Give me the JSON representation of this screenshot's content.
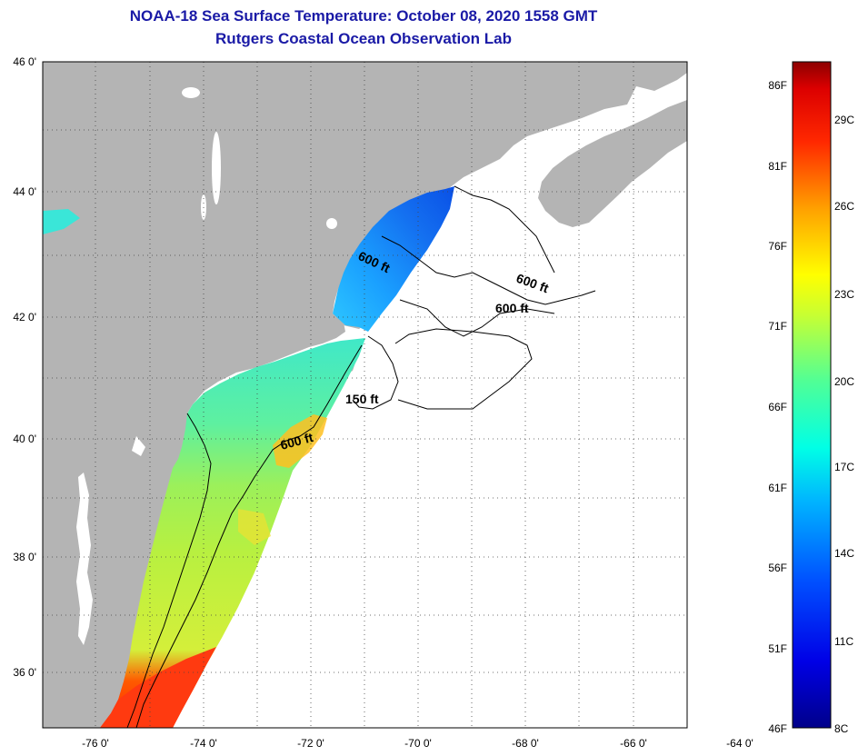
{
  "title": {
    "line1": "NOAA-18 Sea Surface Temperature:  October 08, 2020 1558 GMT",
    "line2": "Rutgers Coastal Ocean Observation Lab"
  },
  "map": {
    "lon_labels": [
      "-76 0'",
      "-74 0'",
      "-72 0'",
      "-70 0'",
      "-68 0'",
      "-66 0'",
      "-64 0'"
    ],
    "lat_labels": [
      "46 0'",
      "44 0'",
      "42 0'",
      "40 0'",
      "38 0'",
      "36 0'"
    ],
    "contour_labels": [
      "600 ft",
      "600 ft",
      "600 ft",
      "150 ft",
      "600 ft"
    ],
    "colors": {
      "land": "#b4b4b4",
      "no_data": "#ffffff"
    }
  },
  "colorbar": {
    "fahrenheit_labels": [
      "86F",
      "81F",
      "76F",
      "71F",
      "66F",
      "61F",
      "56F",
      "51F",
      "46F"
    ],
    "celsius_labels": [
      "29C",
      "26C",
      "23C",
      "20C",
      "17C",
      "14C",
      "11C",
      "8C"
    ]
  }
}
